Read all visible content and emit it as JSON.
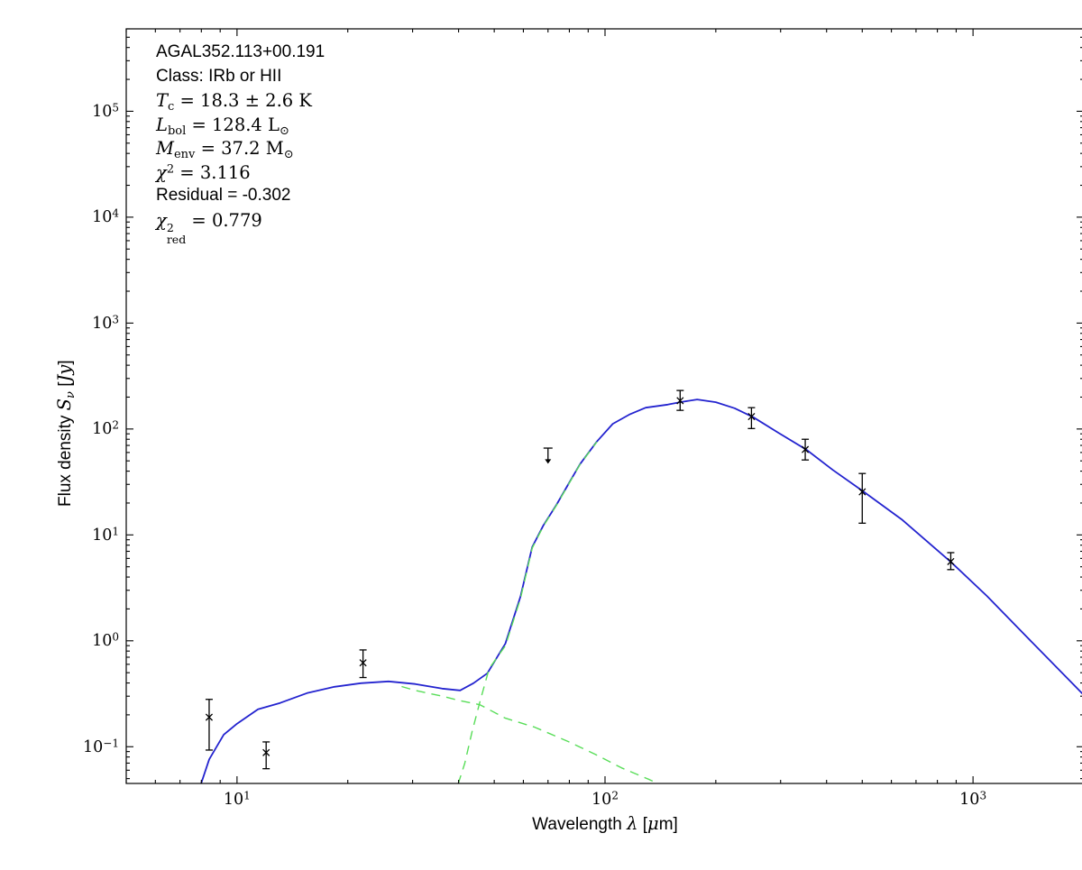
{
  "chart_data": {
    "type": "line",
    "description": "Spectral energy distribution (SED) fit with two-component greybody model",
    "annotation_lines": [
      {
        "seg": [
          {
            "t": "AGAL352.113+00.191",
            "s": "sans"
          }
        ]
      },
      {
        "seg": [
          {
            "t": "Class: IRb or HII",
            "s": "sans"
          }
        ]
      },
      {
        "seg": [
          {
            "t": "T",
            "s": "it"
          },
          {
            "t": "c",
            "s": "sub"
          },
          {
            "t": " = 18.3 ± 2.6 K",
            "s": "rm"
          }
        ]
      },
      {
        "seg": [
          {
            "t": "L",
            "s": "it"
          },
          {
            "t": "bol",
            "s": "sub"
          },
          {
            "t": " = 128.4 L",
            "s": "rm"
          },
          {
            "t": "⊙",
            "s": "sub"
          }
        ]
      },
      {
        "seg": [
          {
            "t": "M",
            "s": "it"
          },
          {
            "t": "env",
            "s": "sub"
          },
          {
            "t": " = 37.2 M",
            "s": "rm"
          },
          {
            "t": "⊙",
            "s": "sub"
          }
        ]
      },
      {
        "seg": [
          {
            "t": "χ",
            "s": "it"
          },
          {
            "t": "2",
            "s": "sup"
          },
          {
            "t": " = 3.116",
            "s": "rm"
          }
        ]
      },
      {
        "seg": [
          {
            "t": "Residual = -0.302",
            "s": "sans"
          }
        ]
      },
      {
        "seg": [
          {
            "t": "χ",
            "s": "it"
          },
          {
            "t": "2|red",
            "s": "supsub"
          },
          {
            "t": " = 0.779",
            "s": "rm"
          }
        ]
      }
    ],
    "xlabel_segments": [
      {
        "t": "Wavelength ",
        "s": "sans"
      },
      {
        "t": "λ",
        "s": "it"
      },
      {
        "t": " [",
        "s": "sans"
      },
      {
        "t": "μ",
        "s": "it"
      },
      {
        "t": "m]",
        "s": "sans"
      }
    ],
    "ylabel_segments": [
      {
        "t": "Flux density ",
        "s": "sans"
      },
      {
        "t": "S",
        "s": "it"
      },
      {
        "t": "ν",
        "s": "subit"
      },
      {
        "t": " [",
        "s": "sans"
      },
      {
        "t": "Jy",
        "s": "it"
      },
      {
        "t": "]",
        "s": "sans"
      }
    ],
    "x_axis": {
      "scale": "log",
      "min": 5,
      "max": 2000,
      "major_tick_exponents": [
        1,
        2,
        3
      ]
    },
    "y_axis": {
      "scale": "log",
      "min": 0.045,
      "max": 600000,
      "major_tick_exponents": [
        -1,
        0,
        1,
        2,
        3,
        4,
        5
      ]
    },
    "grid": false,
    "legend": null,
    "colors": {
      "model_total": "#2323cf",
      "model_components": "#58dd58",
      "data": "#000000"
    },
    "series": [
      {
        "name": "model-total",
        "style": "solid",
        "color_key": "model_total",
        "points": [
          [
            7.98,
            0.0445
          ],
          [
            8.4,
            0.076
          ],
          [
            9.2,
            0.13
          ],
          [
            10,
            0.165
          ],
          [
            11.4,
            0.226
          ],
          [
            13.1,
            0.259
          ],
          [
            15.5,
            0.321
          ],
          [
            18.4,
            0.368
          ],
          [
            21.7,
            0.398
          ],
          [
            25.8,
            0.414
          ],
          [
            30.5,
            0.391
          ],
          [
            36.1,
            0.354
          ],
          [
            40.4,
            0.34
          ],
          [
            43.9,
            0.398
          ],
          [
            47.9,
            0.494
          ],
          [
            53.6,
            0.942
          ],
          [
            58.9,
            2.61
          ],
          [
            63.4,
            7.66
          ],
          [
            68,
            12.3
          ],
          [
            73.8,
            19.2
          ],
          [
            79,
            29
          ],
          [
            85.5,
            46.5
          ],
          [
            95,
            76
          ],
          [
            105,
            112
          ],
          [
            117,
            138
          ],
          [
            129,
            159
          ],
          [
            148,
            170
          ],
          [
            160,
            179
          ],
          [
            178,
            190
          ],
          [
            200,
            179
          ],
          [
            225,
            157
          ],
          [
            253,
            129
          ],
          [
            296,
            92
          ],
          [
            353,
            63.5
          ],
          [
            416,
            41
          ],
          [
            503,
            25.8
          ],
          [
            640,
            14
          ],
          [
            873,
            5.5
          ],
          [
            1091,
            2.65
          ],
          [
            1403,
            1.08
          ],
          [
            1987,
            0.315
          ]
        ]
      },
      {
        "name": "model-cold-component",
        "style": "dashed",
        "color_key": "model_components",
        "points": [
          [
            39.9,
            0.0445
          ],
          [
            41.6,
            0.07
          ],
          [
            43.5,
            0.138
          ],
          [
            45.7,
            0.264
          ],
          [
            48.4,
            0.545
          ],
          [
            53.6,
            0.9
          ],
          [
            58.9,
            2.5
          ],
          [
            63.4,
            7.5
          ],
          [
            68,
            12.1
          ],
          [
            73.8,
            19.0
          ],
          [
            85.5,
            46.2
          ],
          [
            95,
            75.6
          ]
        ]
      },
      {
        "name": "model-warm-component",
        "style": "dashed",
        "color_key": "model_components",
        "points": [
          [
            28,
            0.37
          ],
          [
            30.5,
            0.34
          ],
          [
            36.1,
            0.3
          ],
          [
            40.4,
            0.272
          ],
          [
            45.7,
            0.249
          ],
          [
            53.6,
            0.186
          ],
          [
            64.4,
            0.153
          ],
          [
            79.4,
            0.112
          ],
          [
            94,
            0.085
          ],
          [
            111,
            0.063
          ],
          [
            132,
            0.049
          ],
          [
            150,
            0.04
          ]
        ]
      }
    ],
    "data_points": [
      {
        "lambda": 8.4,
        "flux": 0.19,
        "upper": 0.28,
        "lower": 0.093
      },
      {
        "lambda": 12,
        "flux": 0.088,
        "upper": 0.111,
        "lower": 0.062
      },
      {
        "lambda": 22,
        "flux": 0.62,
        "upper": 0.82,
        "lower": 0.45
      },
      {
        "lambda": 160,
        "flux": 185,
        "upper": 231,
        "lower": 150
      },
      {
        "lambda": 250,
        "flux": 131,
        "upper": 159,
        "lower": 101
      },
      {
        "lambda": 350,
        "flux": 64,
        "upper": 80,
        "lower": 51
      },
      {
        "lambda": 500,
        "flux": 25.5,
        "upper": 38,
        "lower": 12.9
      },
      {
        "lambda": 870,
        "flux": 5.6,
        "upper": 6.8,
        "lower": 4.7
      }
    ],
    "upper_limit": {
      "lambda": 70,
      "flux": 66,
      "arrow_tip": 47
    }
  }
}
